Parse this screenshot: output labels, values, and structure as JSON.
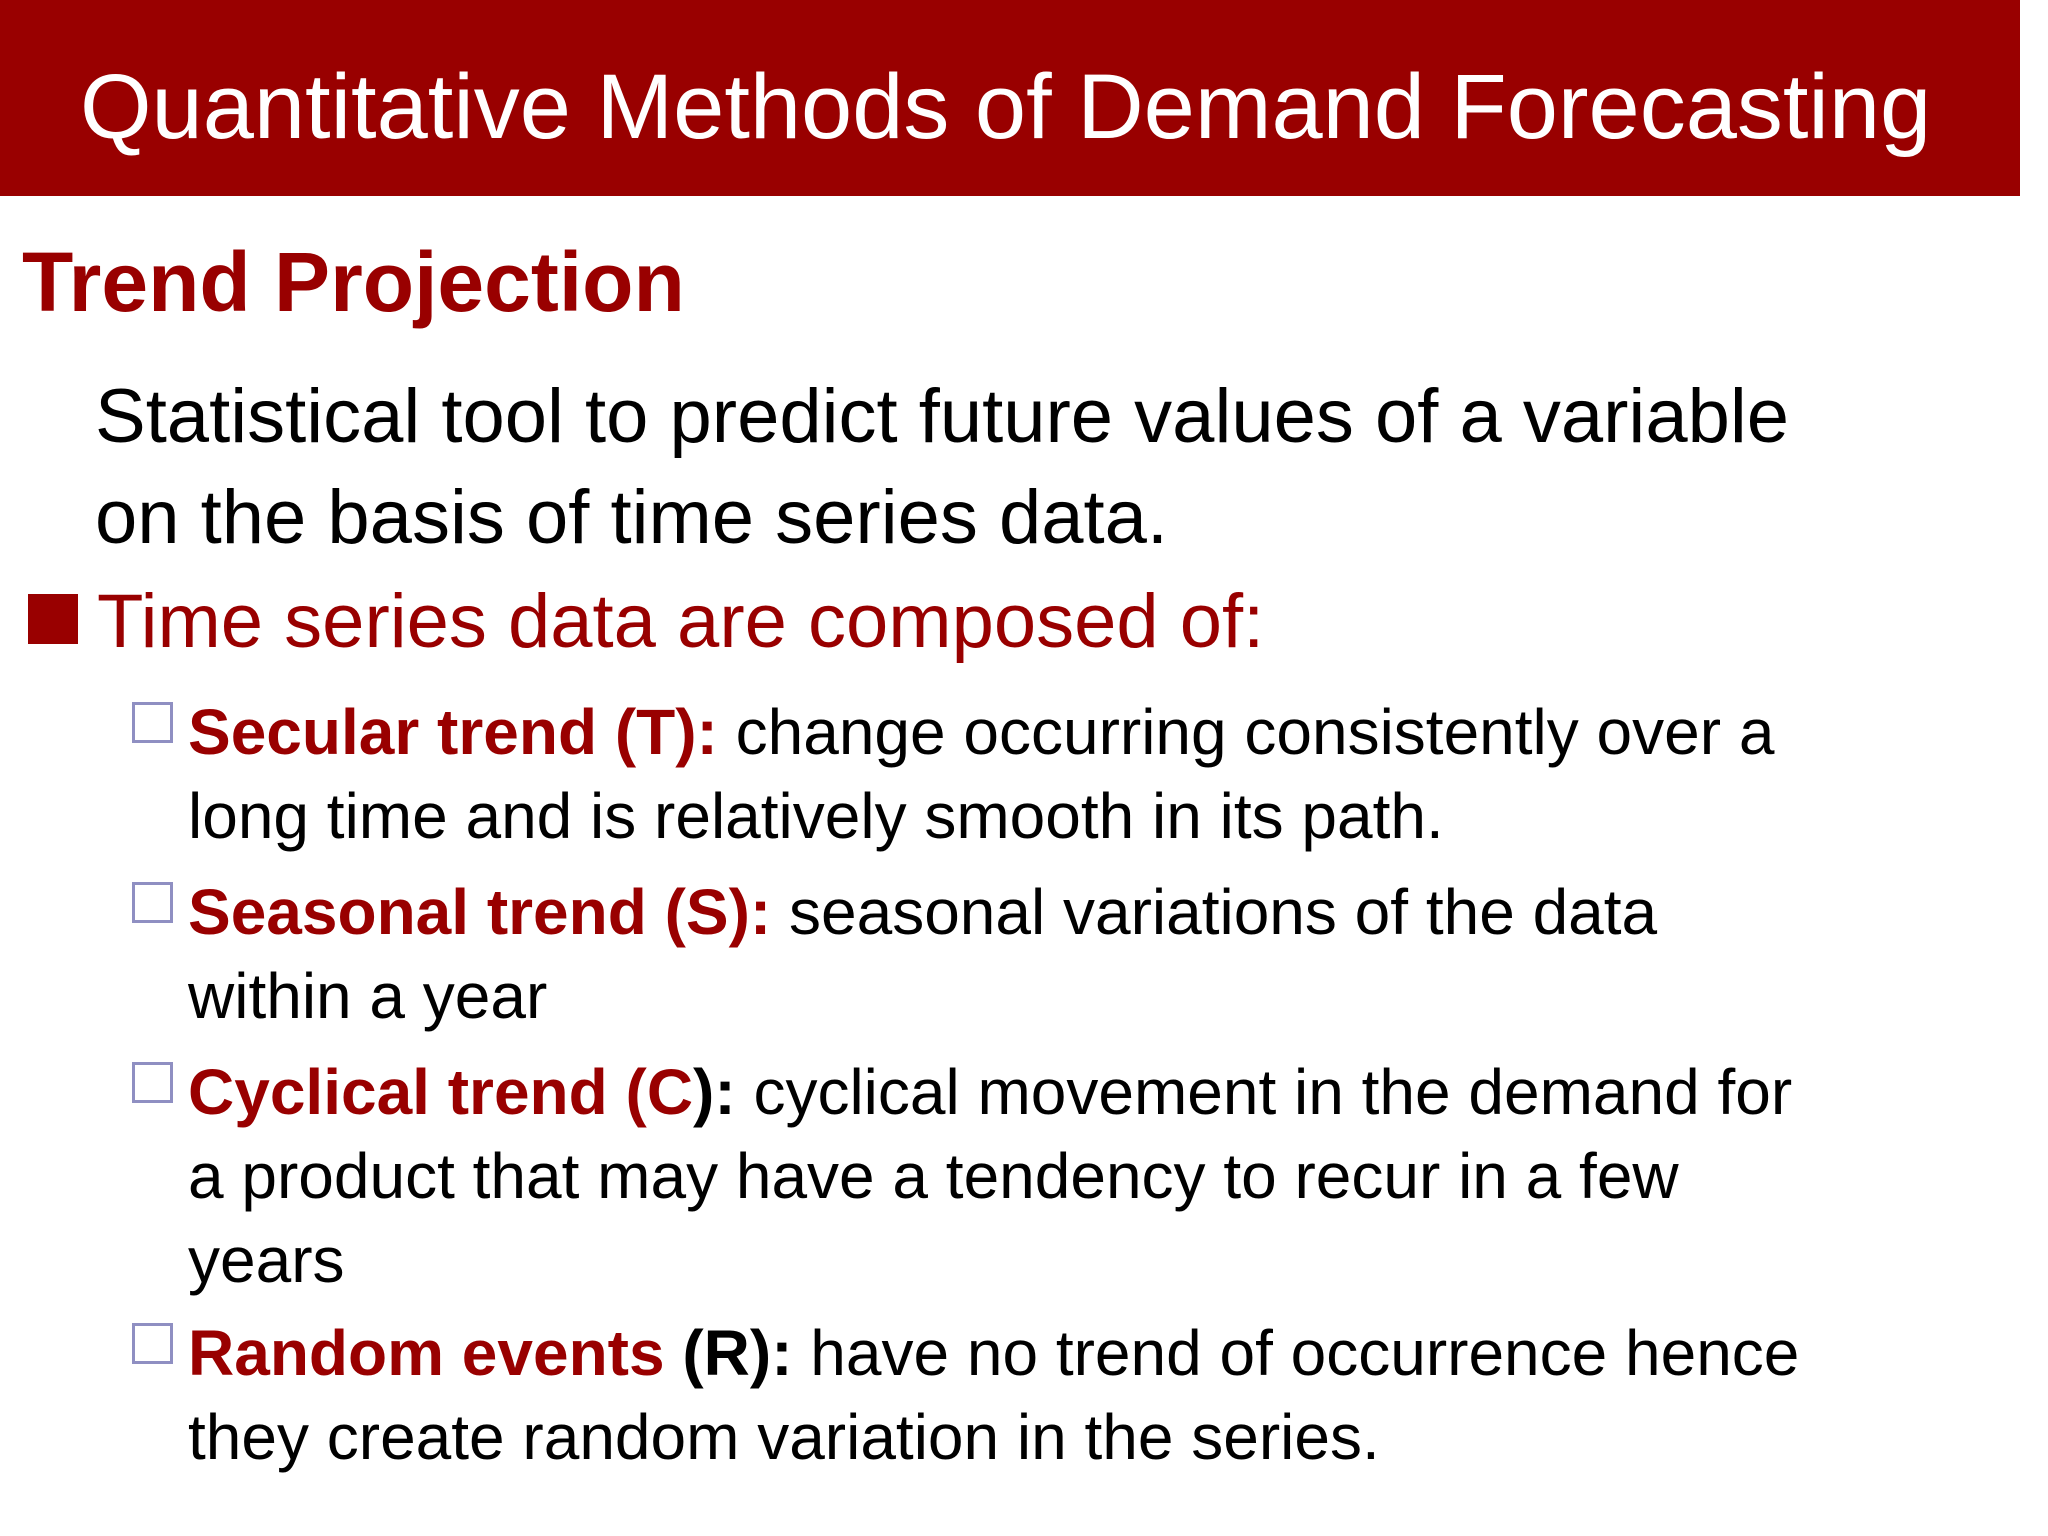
{
  "header": {
    "title": "Quantitative Methods of Demand Forecasting",
    "background_color": "#990000"
  },
  "section": {
    "heading": "Trend Projection",
    "intro_line_1": "Statistical tool to predict future values of a variable",
    "intro_line_2": "on the basis of time series data."
  },
  "bullet": {
    "text": "Time series data are composed of:"
  },
  "components": [
    {
      "term": "Secular trend (T):",
      "desc_line_1": " change occurring consistently over a",
      "desc_line_2": "long time and is relatively smooth in its path."
    },
    {
      "term": "Seasonal trend (S):",
      "desc_line_1": " seasonal variations of the data",
      "desc_line_2": "within a year"
    },
    {
      "term": "Cyclical trend (C",
      "term_suffix": "):",
      "desc_line_1": " cyclical movement in the demand for",
      "desc_line_2": "a product that may have a tendency to recur in a few",
      "desc_line_3": "years"
    },
    {
      "term": "Random events",
      "term_suffix": " (R):",
      "desc_line_1": " have no trend of occurrence hence",
      "desc_line_2": "they create random variation in the series."
    }
  ],
  "colors": {
    "accent": "#990000",
    "checkbox_border": "#8f8fc2",
    "text": "#000000"
  }
}
